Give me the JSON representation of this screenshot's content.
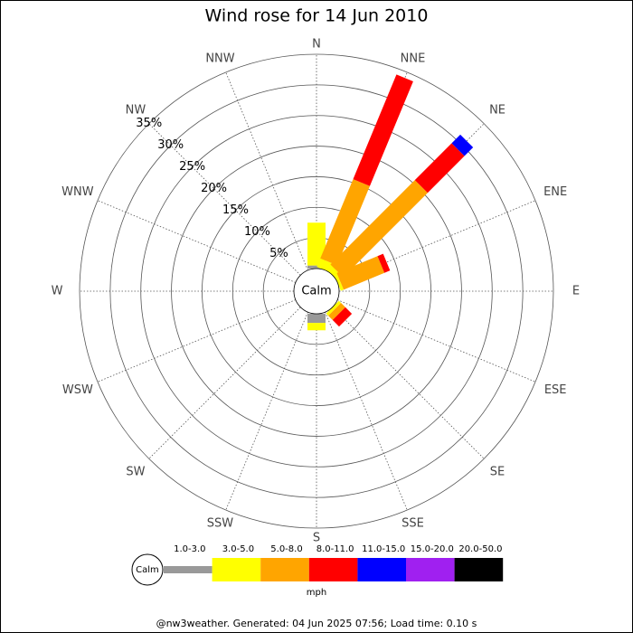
{
  "chart_data": {
    "type": "windrose",
    "title": "Wind rose for 14 Jun 2010",
    "categories": [
      "N",
      "NNE",
      "NE",
      "ENE",
      "E",
      "ESE",
      "SE",
      "SSE",
      "S",
      "SSW",
      "SW",
      "WSW",
      "W",
      "WNW",
      "NW",
      "NNW"
    ],
    "series": [
      {
        "name": "1.0-3.0",
        "color": "#999999",
        "values": [
          0.5,
          0,
          0,
          0,
          0,
          0,
          0,
          0,
          1.5,
          0,
          0,
          0,
          0,
          0,
          0,
          0
        ]
      },
      {
        "name": "3.0-5.0",
        "color": "#ffff00",
        "values": [
          7,
          1.5,
          1,
          0.5,
          0,
          0,
          0.5,
          0,
          1.2,
          0,
          0,
          0,
          0,
          0,
          0,
          0
        ]
      },
      {
        "name": "5.0-8.0",
        "color": "#ffa500",
        "values": [
          0,
          14,
          19.5,
          7.2,
          0,
          0,
          1,
          0,
          0,
          0,
          0,
          0,
          0,
          0,
          0,
          0
        ]
      },
      {
        "name": "8.0-11.0",
        "color": "#ff0000",
        "values": [
          0,
          18.5,
          8.5,
          1,
          0,
          0,
          1.5,
          0,
          0,
          0,
          0,
          0,
          0,
          0,
          0,
          0
        ]
      },
      {
        "name": "11.0-15.0",
        "color": "#0000ff",
        "values": [
          0,
          0,
          2,
          0,
          0,
          0,
          0,
          0,
          0,
          0,
          0,
          0,
          0,
          0,
          0,
          0
        ]
      },
      {
        "name": "15.0-20.0",
        "color": "#a020f0",
        "values": [
          0,
          0,
          0,
          0,
          0,
          0,
          0,
          0,
          0,
          0,
          0,
          0,
          0,
          0,
          0,
          0
        ]
      },
      {
        "name": "20.0-50.0",
        "color": "#000000",
        "values": [
          0,
          0,
          0,
          0,
          0,
          0,
          0,
          0,
          0,
          0,
          0,
          0,
          0,
          0,
          0,
          0
        ]
      }
    ],
    "rlim": [
      0,
      35
    ],
    "rticks": [
      {
        "value": 5,
        "label": "5%"
      },
      {
        "value": 10,
        "label": "10%"
      },
      {
        "value": 15,
        "label": "15%"
      },
      {
        "value": 20,
        "label": "20%"
      },
      {
        "value": 25,
        "label": "25%"
      },
      {
        "value": 30,
        "label": "30%"
      },
      {
        "value": 35,
        "label": "35%"
      }
    ],
    "calm_label": "Calm",
    "unit": "mph",
    "footer": "@nw3weather. Generated: 04 Jun 2025 07:56; Load time: 0.10 s"
  }
}
